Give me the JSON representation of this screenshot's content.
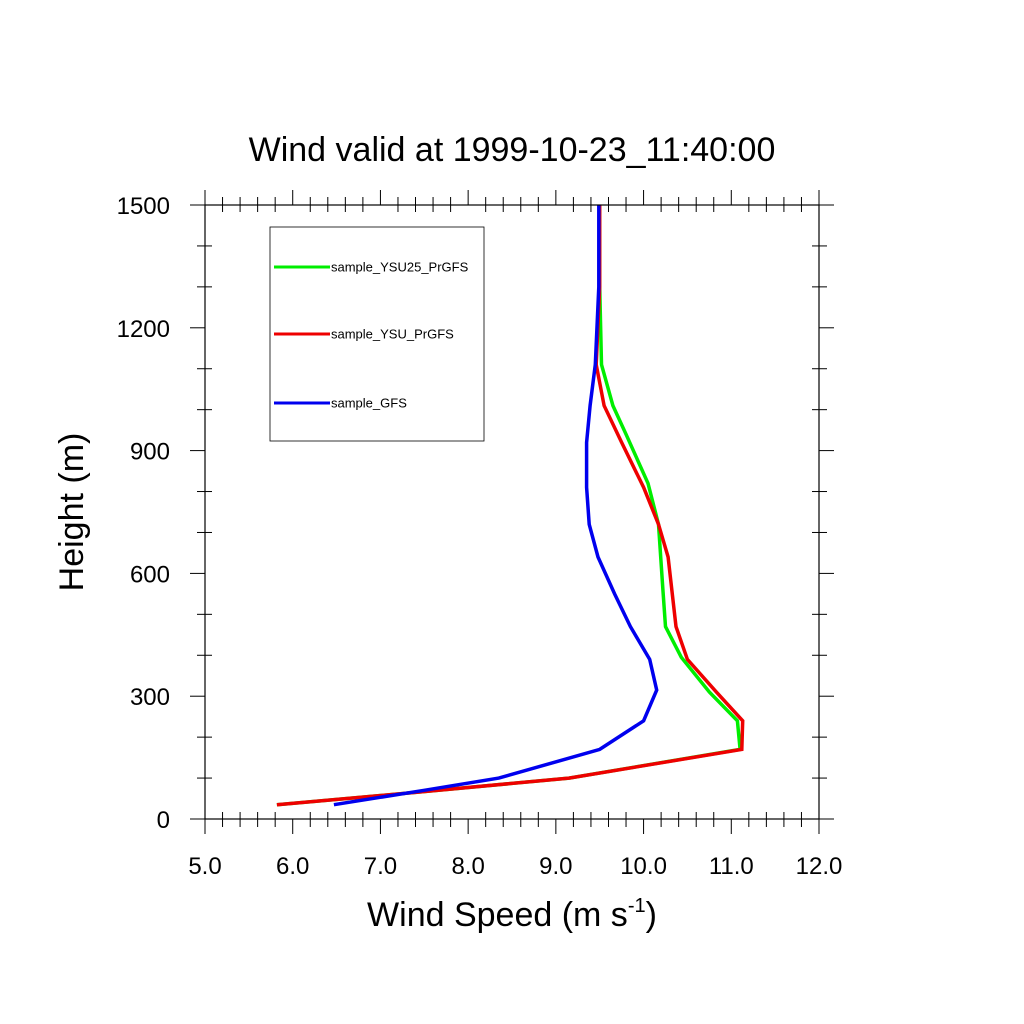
{
  "chart_data": {
    "type": "line",
    "title": "Wind valid at 1999-10-23_11:40:00",
    "xlabel": {
      "main": "Wind Speed (m s",
      "sup": "-1",
      "end": ")"
    },
    "ylabel": "Height (m)",
    "xlim": [
      5.0,
      12.0
    ],
    "ylim": [
      0,
      1500
    ],
    "x_ticks": [
      5.0,
      6.0,
      7.0,
      8.0,
      9.0,
      10.0,
      11.0,
      12.0
    ],
    "x_tick_labels": [
      "5.0",
      "6.0",
      "7.0",
      "8.0",
      "9.0",
      "10.0",
      "11.0",
      "12.0"
    ],
    "y_ticks": [
      0,
      300,
      600,
      900,
      1200,
      1500
    ],
    "y_tick_labels": [
      "0",
      "300",
      "600",
      "900",
      "1200",
      "1500"
    ],
    "grid": false,
    "legend_position": "top-left",
    "series": [
      {
        "name": "sample_YSU25_PrGFS",
        "color": "#00ee00",
        "x": [
          5.82,
          7.4,
          9.15,
          11.1,
          11.07,
          10.75,
          10.43,
          10.25,
          10.22,
          10.17,
          10.05,
          9.8,
          9.65,
          9.52,
          9.5,
          9.5
        ],
        "y": [
          35,
          65,
          100,
          170,
          240,
          310,
          395,
          470,
          560,
          720,
          820,
          940,
          1010,
          1110,
          1300,
          1500
        ]
      },
      {
        "name": "sample_YSU_PrGFS",
        "color": "#ee0000",
        "x": [
          5.82,
          7.4,
          9.15,
          11.12,
          11.13,
          10.83,
          10.5,
          10.37,
          10.28,
          10.17,
          10.0,
          9.75,
          9.55,
          9.46,
          9.5,
          9.5
        ],
        "y": [
          35,
          65,
          100,
          170,
          240,
          310,
          390,
          470,
          640,
          720,
          810,
          920,
          1010,
          1110,
          1300,
          1500
        ]
      },
      {
        "name": "sample_GFS",
        "color": "#0000ee",
        "x": [
          6.47,
          7.5,
          8.35,
          9.5,
          10.0,
          10.15,
          10.07,
          9.85,
          9.67,
          9.48,
          9.38,
          9.35,
          9.35,
          9.39,
          9.45,
          9.49,
          9.49
        ],
        "y": [
          35,
          70,
          100,
          170,
          240,
          315,
          390,
          470,
          550,
          640,
          720,
          810,
          920,
          1010,
          1110,
          1300,
          1500
        ]
      }
    ]
  }
}
